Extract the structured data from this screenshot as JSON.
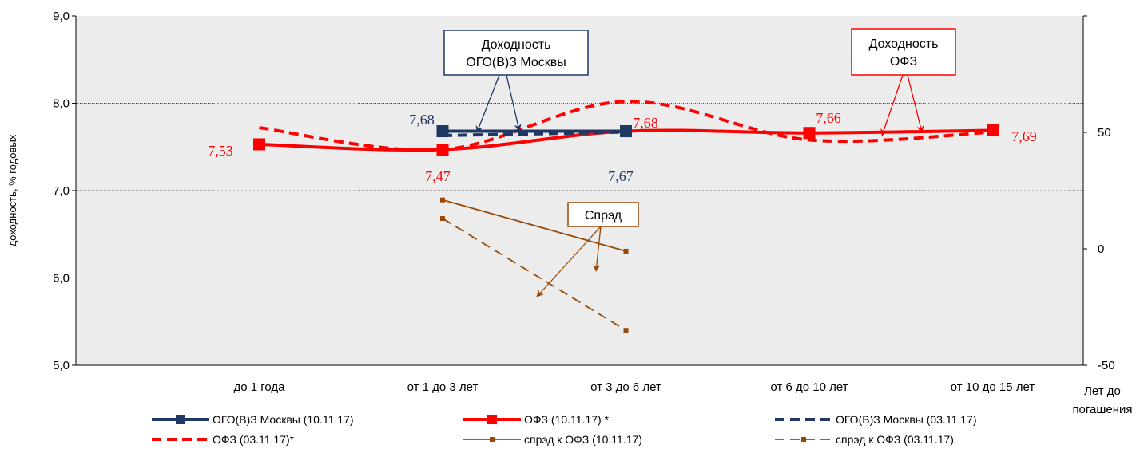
{
  "chart_data": {
    "type": "line",
    "categories": [
      "до 1 года",
      "от 1 до 3 лет",
      "от 3 до 6 лет",
      "от 6 до 10 лет",
      "от 10 до 15 лет"
    ],
    "xlabel": "Лет до погашения",
    "xlabel_lines": [
      "Лет до",
      "погашения"
    ],
    "ylabel": "доходность, % годовых",
    "ylim": [
      5.0,
      9.0
    ],
    "y_ticks": [
      "5,0",
      "6,0",
      "7,0",
      "8,0",
      "9,0"
    ],
    "y2_ticks": [
      "-50",
      "0",
      "50"
    ],
    "y2lim": [
      -50,
      100
    ],
    "grid": "horizontal dotted",
    "legend_position": "bottom",
    "series": [
      {
        "name": "ОГО(В)З Москвы (10.11.17)",
        "axis": "left",
        "color": "#1f3864",
        "style": "solid-thick-marker",
        "points": [
          [
            1,
            7.68
          ],
          [
            2,
            7.68
          ]
        ]
      },
      {
        "name": "ОФЗ (10.11.17) *",
        "axis": "left",
        "color": "#ff0000",
        "style": "solid-thick-marker",
        "points": [
          [
            0,
            7.53
          ],
          [
            1,
            7.47
          ],
          [
            2,
            7.68
          ],
          [
            3,
            7.66
          ],
          [
            4,
            7.69
          ]
        ]
      },
      {
        "name": "ОГО(В)З Москвы (03.11.17)",
        "axis": "left",
        "color": "#1f3864",
        "style": "dashed-thick",
        "points": [
          [
            1,
            7.63
          ],
          [
            2,
            7.67
          ]
        ]
      },
      {
        "name": "ОФЗ  (03.11.17)*",
        "axis": "left",
        "color": "#ff0000",
        "style": "dashed-thick",
        "points": [
          [
            0,
            7.72
          ],
          [
            1,
            7.47
          ],
          [
            2,
            8.02
          ],
          [
            3,
            7.58
          ],
          [
            4,
            7.67
          ]
        ]
      },
      {
        "name": "спрэд к ОФЗ (10.11.17)",
        "axis": "right",
        "color": "#984806",
        "style": "solid-thin-marker",
        "points": [
          [
            1,
            21
          ],
          [
            2,
            -1
          ]
        ]
      },
      {
        "name": "спрэд к ОФЗ (03.11.17)",
        "axis": "right",
        "color": "#984806",
        "style": "dashed-thin-marker",
        "points": [
          [
            1,
            13
          ],
          [
            2,
            -35
          ]
        ]
      }
    ],
    "data_labels": [
      {
        "text": "7,53",
        "color": "#ff0000"
      },
      {
        "text": "7,47",
        "color": "#ff0000"
      },
      {
        "text": "7,68",
        "color": "#ff0000"
      },
      {
        "text": "7,66",
        "color": "#ff0000"
      },
      {
        "text": "7,69",
        "color": "#ff0000"
      },
      {
        "text": "7,68",
        "color": "#1f3864"
      },
      {
        "text": "7,67",
        "color": "#1f3864"
      }
    ],
    "annotations": [
      {
        "lines": [
          "Доходность",
          "ОГО(В)З Москвы"
        ],
        "color": "#1f3864"
      },
      {
        "lines": [
          "Доходность",
          "ОФЗ"
        ],
        "color": "#ff0000"
      },
      {
        "lines": [
          "Спрэд"
        ],
        "color": "#984806"
      }
    ]
  }
}
